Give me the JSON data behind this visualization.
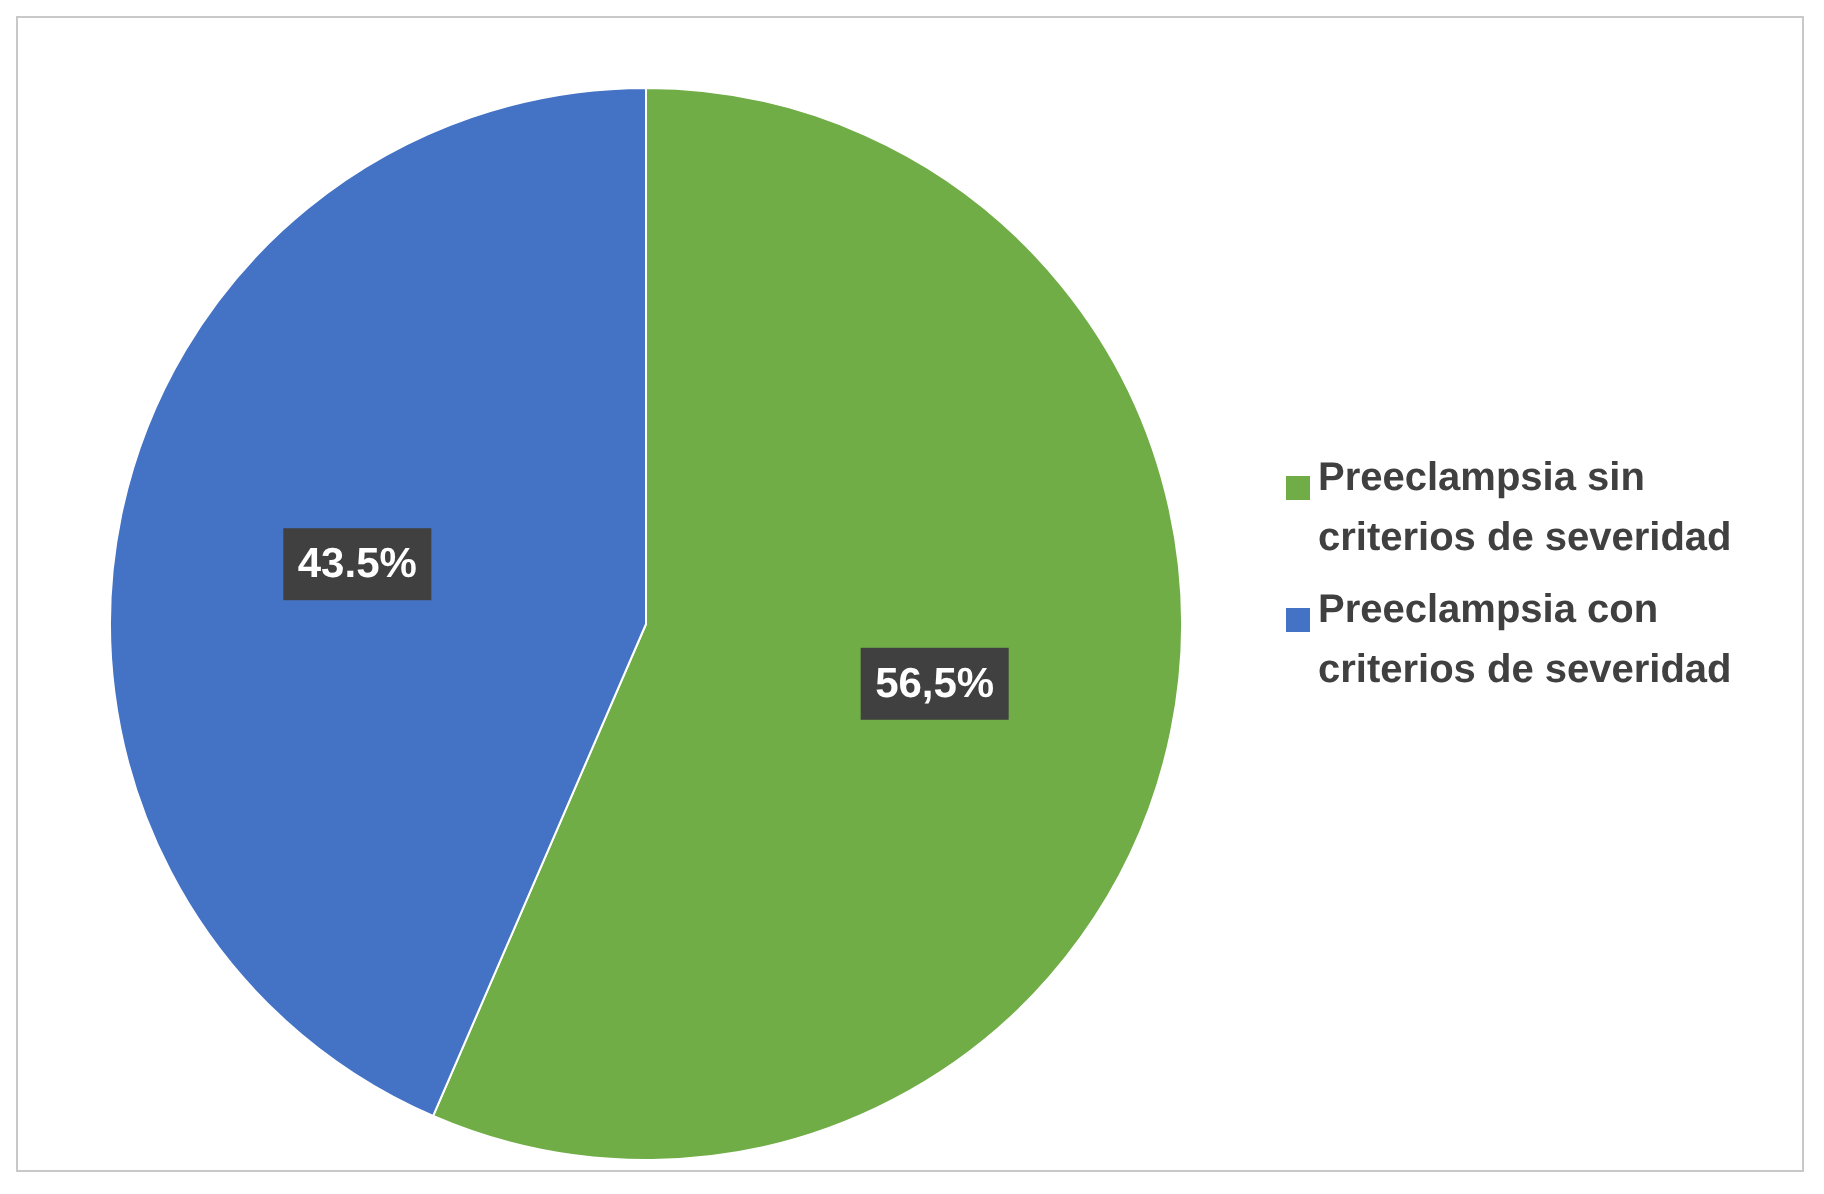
{
  "chart_data": {
    "type": "pie",
    "categories": [
      "Preeclampsia sin criterios de severidad",
      "Preeclampsia con criterios de severidad"
    ],
    "values": [
      56.5,
      43.5
    ],
    "colors": [
      "#70ad47",
      "#4472c4"
    ],
    "value_labels": [
      "56,5%",
      "43.5%"
    ],
    "legend": "right"
  }
}
